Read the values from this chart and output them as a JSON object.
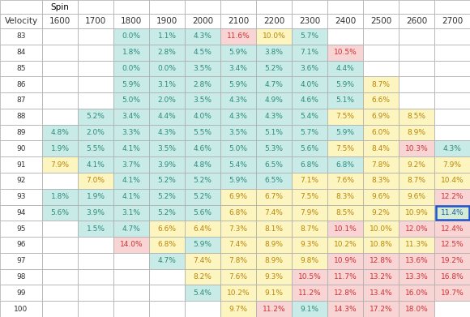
{
  "spin_values": [
    1600,
    1700,
    1800,
    1900,
    2000,
    2100,
    2200,
    2300,
    2400,
    2500,
    2600,
    2700
  ],
  "velocity_values": [
    83,
    84,
    85,
    86,
    87,
    88,
    89,
    90,
    91,
    92,
    93,
    94,
    95,
    96,
    97,
    98,
    99,
    100
  ],
  "table_data": {
    "83": {
      "1600": "",
      "1700": "",
      "1800": "0.0%",
      "1900": "1.1%",
      "2000": "4.3%",
      "2100": "11.6%",
      "2200": "10.0%",
      "2300": "5.7%",
      "2400": "",
      "2500": "",
      "2600": "",
      "2700": ""
    },
    "84": {
      "1600": "",
      "1700": "",
      "1800": "1.8%",
      "1900": "2.8%",
      "2000": "4.5%",
      "2100": "5.9%",
      "2200": "3.8%",
      "2300": "7.1%",
      "2400": "10.5%",
      "2500": "",
      "2600": "",
      "2700": ""
    },
    "85": {
      "1600": "",
      "1700": "",
      "1800": "0.0%",
      "1900": "0.0%",
      "2000": "3.5%",
      "2100": "3.4%",
      "2200": "5.2%",
      "2300": "3.6%",
      "2400": "4.4%",
      "2500": "",
      "2600": "",
      "2700": ""
    },
    "86": {
      "1600": "",
      "1700": "",
      "1800": "5.9%",
      "1900": "3.1%",
      "2000": "2.8%",
      "2100": "5.9%",
      "2200": "4.7%",
      "2300": "4.0%",
      "2400": "5.9%",
      "2500": "8.7%",
      "2600": "",
      "2700": ""
    },
    "87": {
      "1600": "",
      "1700": "",
      "1800": "5.0%",
      "1900": "2.0%",
      "2000": "3.5%",
      "2100": "4.3%",
      "2200": "4.9%",
      "2300": "4.6%",
      "2400": "5.1%",
      "2500": "6.6%",
      "2600": "",
      "2700": ""
    },
    "88": {
      "1600": "",
      "1700": "5.2%",
      "1800": "3.4%",
      "1900": "4.4%",
      "2000": "4.0%",
      "2100": "4.3%",
      "2200": "4.3%",
      "2300": "5.4%",
      "2400": "7.5%",
      "2500": "6.9%",
      "2600": "8.5%",
      "2700": ""
    },
    "89": {
      "1600": "4.8%",
      "1700": "2.0%",
      "1800": "3.3%",
      "1900": "4.3%",
      "2000": "5.5%",
      "2100": "3.5%",
      "2200": "5.1%",
      "2300": "5.7%",
      "2400": "5.9%",
      "2500": "6.0%",
      "2600": "8.9%",
      "2700": ""
    },
    "90": {
      "1600": "1.9%",
      "1700": "5.5%",
      "1800": "4.1%",
      "1900": "3.5%",
      "2000": "4.6%",
      "2100": "5.0%",
      "2200": "5.3%",
      "2300": "5.6%",
      "2400": "7.5%",
      "2500": "8.4%",
      "2600": "10.3%",
      "2700": "4.3%"
    },
    "91": {
      "1600": "7.9%",
      "1700": "4.1%",
      "1800": "3.7%",
      "1900": "3.9%",
      "2000": "4.8%",
      "2100": "5.4%",
      "2200": "6.5%",
      "2300": "6.8%",
      "2400": "6.8%",
      "2500": "7.8%",
      "2600": "9.2%",
      "2700": "7.9%"
    },
    "92": {
      "1600": "",
      "1700": "7.0%",
      "1800": "4.1%",
      "1900": "5.2%",
      "2000": "5.2%",
      "2100": "5.9%",
      "2200": "6.5%",
      "2300": "7.1%",
      "2400": "7.6%",
      "2500": "8.3%",
      "2600": "8.7%",
      "2700": "10.4%"
    },
    "93": {
      "1600": "1.8%",
      "1700": "1.9%",
      "1800": "4.1%",
      "1900": "5.2%",
      "2000": "5.2%",
      "2100": "6.9%",
      "2200": "6.7%",
      "2300": "7.5%",
      "2400": "8.3%",
      "2500": "9.6%",
      "2600": "9.6%",
      "2700": "12.2%"
    },
    "94": {
      "1600": "5.6%",
      "1700": "3.9%",
      "1800": "3.1%",
      "1900": "5.2%",
      "2000": "5.6%",
      "2100": "6.8%",
      "2200": "7.4%",
      "2300": "7.9%",
      "2400": "8.5%",
      "2500": "9.2%",
      "2600": "10.9%",
      "2700": "11.4%"
    },
    "95": {
      "1600": "",
      "1700": "1.5%",
      "1800": "4.7%",
      "1900": "6.6%",
      "2000": "6.4%",
      "2100": "7.3%",
      "2200": "8.1%",
      "2300": "8.7%",
      "2400": "10.1%",
      "2500": "10.0%",
      "2600": "12.0%",
      "2700": "12.4%"
    },
    "96": {
      "1600": "",
      "1700": "",
      "1800": "14.0%",
      "1900": "6.8%",
      "2000": "5.9%",
      "2100": "7.4%",
      "2200": "8.9%",
      "2300": "9.3%",
      "2400": "10.2%",
      "2500": "10.8%",
      "2600": "11.3%",
      "2700": "12.5%"
    },
    "97": {
      "1600": "",
      "1700": "",
      "1800": "",
      "1900": "4.7%",
      "2000": "7.4%",
      "2100": "7.8%",
      "2200": "8.9%",
      "2300": "9.8%",
      "2400": "10.9%",
      "2500": "12.8%",
      "2600": "13.6%",
      "2700": "19.2%"
    },
    "98": {
      "1600": "",
      "1700": "",
      "1800": "",
      "1900": "",
      "2000": "8.2%",
      "2100": "7.6%",
      "2200": "9.3%",
      "2300": "10.5%",
      "2400": "11.7%",
      "2500": "13.2%",
      "2600": "13.3%",
      "2700": "16.8%"
    },
    "99": {
      "1600": "",
      "1700": "",
      "1800": "",
      "1900": "",
      "2000": "5.4%",
      "2100": "10.2%",
      "2200": "9.1%",
      "2300": "11.2%",
      "2400": "12.8%",
      "2500": "13.4%",
      "2600": "16.0%",
      "2700": "19.7%"
    },
    "100": {
      "1600": "",
      "1700": "",
      "1800": "",
      "1900": "",
      "2000": "",
      "2100": "9.7%",
      "2200": "11.2%",
      "2300": "9.1%",
      "2400": "14.3%",
      "2500": "17.2%",
      "2600": "18.0%",
      "2700": ""
    }
  },
  "cell_colors": {
    "83": {
      "1800": "teal",
      "1900": "teal",
      "2000": "teal",
      "2100": "pink",
      "2200": "yellow",
      "2300": "teal"
    },
    "84": {
      "1800": "teal",
      "1900": "teal",
      "2000": "teal",
      "2100": "teal",
      "2200": "teal",
      "2300": "teal",
      "2400": "pink"
    },
    "85": {
      "1800": "teal",
      "1900": "teal",
      "2000": "teal",
      "2100": "teal",
      "2200": "teal",
      "2300": "teal",
      "2400": "teal"
    },
    "86": {
      "1800": "teal",
      "1900": "teal",
      "2000": "teal",
      "2100": "teal",
      "2200": "teal",
      "2300": "teal",
      "2400": "teal",
      "2500": "yellow"
    },
    "87": {
      "1800": "teal",
      "1900": "teal",
      "2000": "teal",
      "2100": "teal",
      "2200": "teal",
      "2300": "teal",
      "2400": "teal",
      "2500": "yellow"
    },
    "88": {
      "1700": "teal",
      "1800": "teal",
      "1900": "teal",
      "2000": "teal",
      "2100": "teal",
      "2200": "teal",
      "2300": "teal",
      "2400": "yellow",
      "2500": "yellow",
      "2600": "yellow"
    },
    "89": {
      "1600": "teal",
      "1700": "teal",
      "1800": "teal",
      "1900": "teal",
      "2000": "teal",
      "2100": "teal",
      "2200": "teal",
      "2300": "teal",
      "2400": "teal",
      "2500": "yellow",
      "2600": "yellow"
    },
    "90": {
      "1600": "teal",
      "1700": "teal",
      "1800": "teal",
      "1900": "teal",
      "2000": "teal",
      "2100": "teal",
      "2200": "teal",
      "2300": "teal",
      "2400": "yellow",
      "2500": "yellow",
      "2600": "pink",
      "2700": "teal"
    },
    "91": {
      "1600": "yellow",
      "1700": "teal",
      "1800": "teal",
      "1900": "teal",
      "2000": "teal",
      "2100": "teal",
      "2200": "teal",
      "2300": "teal",
      "2400": "teal",
      "2500": "yellow",
      "2600": "yellow",
      "2700": "yellow"
    },
    "92": {
      "1700": "yellow",
      "1800": "teal",
      "1900": "teal",
      "2000": "teal",
      "2100": "teal",
      "2200": "teal",
      "2300": "yellow",
      "2400": "yellow",
      "2500": "yellow",
      "2600": "yellow",
      "2700": "yellow"
    },
    "93": {
      "1600": "teal",
      "1700": "teal",
      "1800": "teal",
      "1900": "teal",
      "2000": "teal",
      "2100": "yellow",
      "2200": "yellow",
      "2300": "yellow",
      "2400": "yellow",
      "2500": "yellow",
      "2600": "yellow",
      "2700": "pink"
    },
    "94": {
      "1600": "teal",
      "1700": "teal",
      "1800": "teal",
      "1900": "teal",
      "2000": "teal",
      "2100": "yellow",
      "2200": "yellow",
      "2300": "yellow",
      "2400": "yellow",
      "2500": "yellow",
      "2600": "yellow",
      "2700": "blue_outline"
    },
    "95": {
      "1700": "teal",
      "1800": "teal",
      "1900": "yellow",
      "2000": "yellow",
      "2100": "yellow",
      "2200": "yellow",
      "2300": "yellow",
      "2400": "pink",
      "2500": "yellow",
      "2600": "pink",
      "2700": "pink"
    },
    "96": {
      "1800": "pink",
      "1900": "yellow",
      "2000": "teal",
      "2100": "yellow",
      "2200": "yellow",
      "2300": "yellow",
      "2400": "yellow",
      "2500": "yellow",
      "2600": "yellow",
      "2700": "pink"
    },
    "97": {
      "1900": "teal",
      "2000": "yellow",
      "2100": "yellow",
      "2200": "yellow",
      "2300": "yellow",
      "2400": "pink",
      "2500": "pink",
      "2600": "pink",
      "2700": "pink"
    },
    "98": {
      "2000": "yellow",
      "2100": "yellow",
      "2200": "yellow",
      "2300": "pink",
      "2400": "pink",
      "2500": "pink",
      "2600": "pink",
      "2700": "pink"
    },
    "99": {
      "2000": "teal",
      "2100": "yellow",
      "2200": "yellow",
      "2300": "pink",
      "2400": "pink",
      "2500": "pink",
      "2600": "pink",
      "2700": "pink"
    },
    "100": {
      "2100": "yellow",
      "2200": "pink",
      "2300": "teal",
      "2400": "pink",
      "2500": "pink",
      "2600": "pink"
    }
  },
  "color_map": {
    "teal": "#c8ebe8",
    "yellow": "#fdf5c0",
    "pink": "#f9d4d4",
    "white": "#ffffff",
    "blue_outline_bg": "#d4ecd4"
  },
  "text_color_map": {
    "teal": "#2e8b7a",
    "yellow": "#b8860b",
    "pink": "#cc3333",
    "white": "#555555",
    "blue_outline_bg": "#1a5cb0"
  },
  "font_size": 6.5,
  "header_font_size": 7.5
}
